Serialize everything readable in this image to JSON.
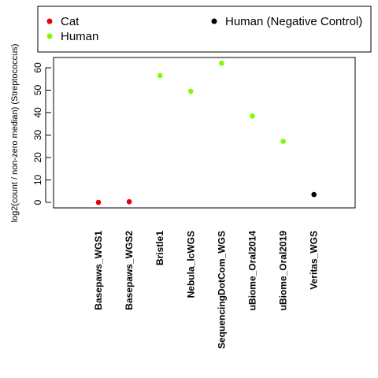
{
  "chart_data": {
    "type": "scatter",
    "title": "",
    "xlabel": "",
    "ylabel": "log2(count / non-zero median) (Streptococcus)",
    "ylim": [
      -2,
      65
    ],
    "yticks": [
      0,
      10,
      20,
      30,
      40,
      50,
      60
    ],
    "grid": false,
    "legend_position": "top",
    "categories": [
      "Basepaws_WGS1",
      "Basepaws_WGS2",
      "Bristle1",
      "Nebula_lcWGS",
      "SequencingDotCom_WGS",
      "uBiome_Oral2014",
      "uBiome_Oral2019",
      "Veritas_WGS"
    ],
    "series": [
      {
        "name": "Cat",
        "color": "#e8000b",
        "points": [
          {
            "category": "Basepaws_WGS1",
            "value": 0.0
          },
          {
            "category": "Basepaws_WGS2",
            "value": 0.3
          }
        ]
      },
      {
        "name": "Human",
        "color": "#7cfc00",
        "points": [
          {
            "category": "Bristle1",
            "value": 56.5
          },
          {
            "category": "Nebula_lcWGS",
            "value": 49.5
          },
          {
            "category": "SequencingDotCom_WGS",
            "value": 62.0
          },
          {
            "category": "uBiome_Oral2014",
            "value": 38.5
          },
          {
            "category": "uBiome_Oral2019",
            "value": 27.2
          }
        ]
      },
      {
        "name": "Human (Negative Control)",
        "color": "#000000",
        "points": [
          {
            "category": "Veritas_WGS",
            "value": 3.5
          }
        ]
      }
    ]
  }
}
